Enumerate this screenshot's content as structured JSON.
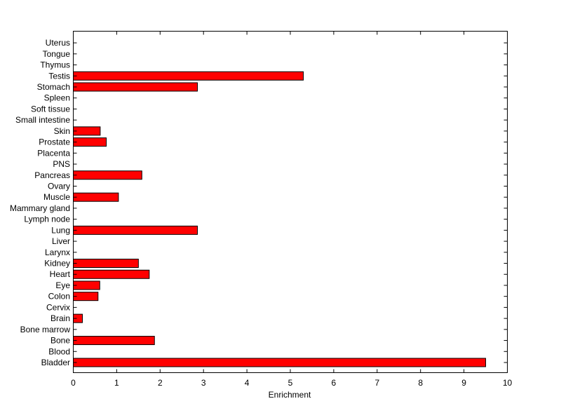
{
  "chart_data": {
    "type": "bar",
    "orientation": "horizontal",
    "title": "",
    "xlabel": "Enrichment",
    "ylabel": "",
    "xlim": [
      0,
      10
    ],
    "xticks": [
      "0",
      "1",
      "2",
      "3",
      "4",
      "5",
      "6",
      "7",
      "8",
      "9",
      "10"
    ],
    "grid": false,
    "legend": "none",
    "bar_color": "#ff0000",
    "bar_edge_color": "#000000",
    "categories": [
      "Bladder",
      "Blood",
      "Bone",
      "Bone marrow",
      "Brain",
      "Cervix",
      "Colon",
      "Eye",
      "Heart",
      "Kidney",
      "Larynx",
      "Liver",
      "Lung",
      "Lymph node",
      "Mammary gland",
      "Muscle",
      "Ovary",
      "Pancreas",
      "PNS",
      "Placenta",
      "Prostate",
      "Skin",
      "Small intestine",
      "Soft tissue",
      "Spleen",
      "Stomach",
      "Testis",
      "Thymus",
      "Tongue",
      "Uterus"
    ],
    "values": [
      9.5,
      0,
      1.87,
      0,
      0.21,
      0,
      0.57,
      0.61,
      1.75,
      1.5,
      0,
      0,
      2.86,
      0,
      0,
      1.04,
      0,
      1.58,
      0,
      0,
      0.76,
      0.62,
      0,
      0,
      0,
      2.86,
      5.3,
      0,
      0,
      0
    ]
  }
}
